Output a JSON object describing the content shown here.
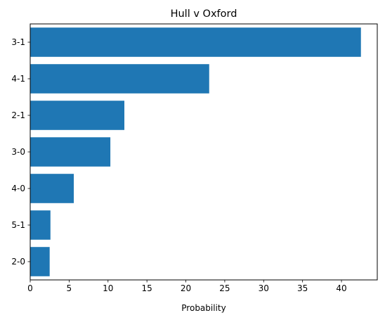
{
  "chart_data": {
    "type": "bar",
    "orientation": "horizontal",
    "title": "Hull v Oxford",
    "xlabel": "Probability",
    "ylabel": "",
    "categories": [
      "3-1",
      "4-1",
      "2-1",
      "3-0",
      "4-0",
      "5-1",
      "2-0"
    ],
    "values": [
      42.5,
      23.0,
      12.1,
      10.3,
      5.6,
      2.6,
      2.5
    ],
    "xlim": [
      0,
      44.6
    ],
    "xticks": [
      0,
      5,
      10,
      15,
      20,
      25,
      30,
      35,
      40
    ],
    "grid": false,
    "legend": "none",
    "bar_color": "#1f77b4"
  }
}
